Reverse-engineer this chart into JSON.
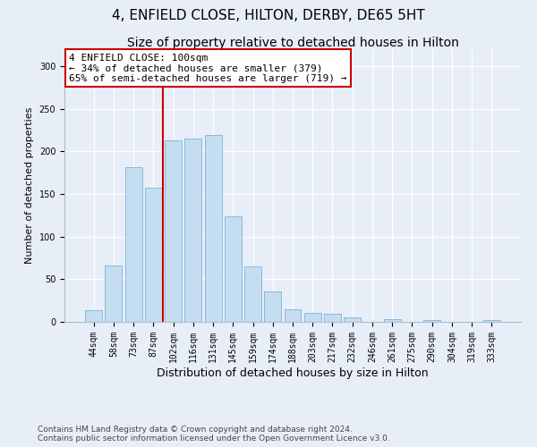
{
  "title": "4, ENFIELD CLOSE, HILTON, DERBY, DE65 5HT",
  "subtitle": "Size of property relative to detached houses in Hilton",
  "xlabel": "Distribution of detached houses by size in Hilton",
  "ylabel": "Number of detached properties",
  "categories": [
    "44sqm",
    "58sqm",
    "73sqm",
    "87sqm",
    "102sqm",
    "116sqm",
    "131sqm",
    "145sqm",
    "159sqm",
    "174sqm",
    "188sqm",
    "203sqm",
    "217sqm",
    "232sqm",
    "246sqm",
    "261sqm",
    "275sqm",
    "290sqm",
    "304sqm",
    "319sqm",
    "333sqm"
  ],
  "values": [
    14,
    66,
    181,
    157,
    213,
    215,
    219,
    124,
    65,
    36,
    15,
    11,
    9,
    5,
    0,
    3,
    0,
    2,
    0,
    0,
    2
  ],
  "bar_color": "#c5ddf0",
  "bar_edge_color": "#7ab3d8",
  "vline_color": "#cc0000",
  "annotation_text": "4 ENFIELD CLOSE: 100sqm\n← 34% of detached houses are smaller (379)\n65% of semi-detached houses are larger (719) →",
  "annotation_box_color": "#ffffff",
  "annotation_box_edge_color": "#cc0000",
  "footer_line1": "Contains HM Land Registry data © Crown copyright and database right 2024.",
  "footer_line2": "Contains public sector information licensed under the Open Government Licence v3.0.",
  "ylim": [
    0,
    320
  ],
  "background_color": "#e8eef8",
  "title_fontsize": 11,
  "subtitle_fontsize": 10,
  "xlabel_fontsize": 9,
  "ylabel_fontsize": 8,
  "tick_fontsize": 7,
  "footer_fontsize": 6.5,
  "annotation_fontsize": 8
}
